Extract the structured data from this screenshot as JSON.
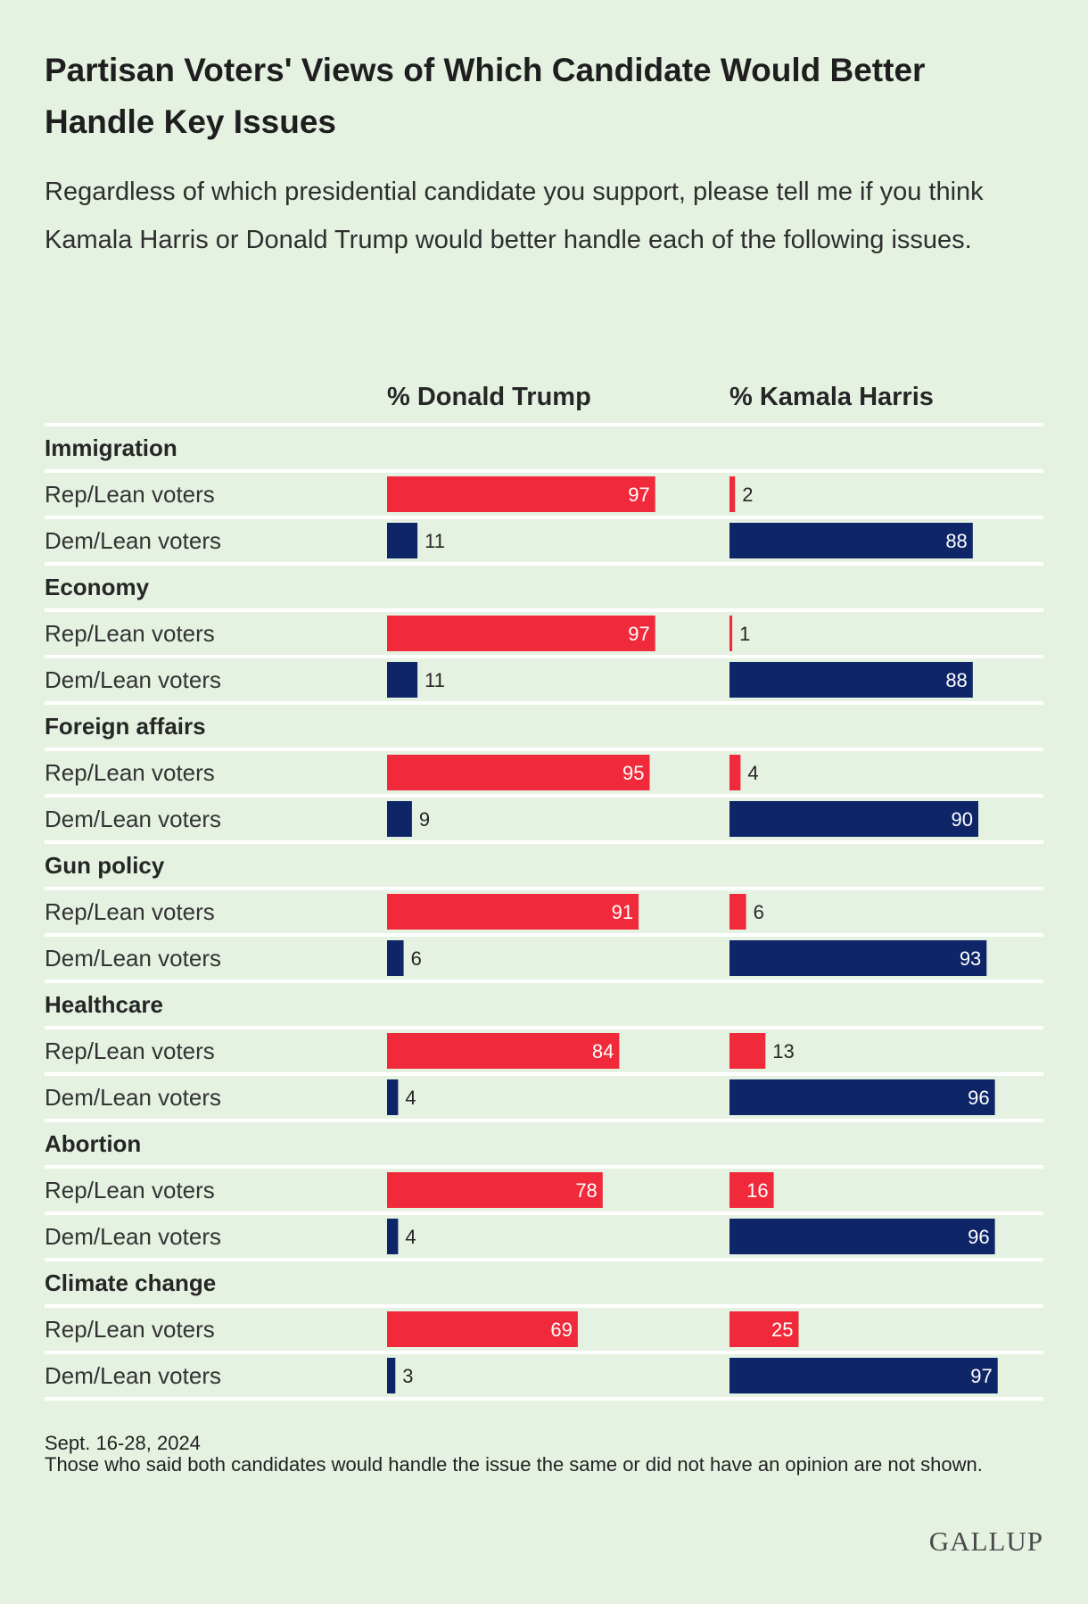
{
  "title": "Partisan Voters' Views of Which Candidate Would Better Handle Key Issues",
  "subtitle": "Regardless of which presidential candidate you support, please tell me if you think Kamala Harris or Donald Trump would better handle each of the following issues.",
  "footer": {
    "date": "Sept. 16-28, 2024",
    "note": "Those who said both candidates would handle the issue the same or did not have an opinion are not shown."
  },
  "logo": "GALLUP",
  "colors": {
    "rep": "#f02a3a",
    "dem": "#0e2568",
    "background": "#e5f2e2",
    "divider": "#ffffff"
  },
  "chart_data": {
    "type": "bar",
    "orientation": "horizontal",
    "columns": [
      "% Donald Trump",
      "% Kamala Harris"
    ],
    "groups": [
      {
        "issue": "Immigration",
        "rows": [
          {
            "label": "Rep/Lean voters",
            "trump": 97,
            "harris": 2
          },
          {
            "label": "Dem/Lean voters",
            "trump": 11,
            "harris": 88
          }
        ]
      },
      {
        "issue": "Economy",
        "rows": [
          {
            "label": "Rep/Lean voters",
            "trump": 97,
            "harris": 1
          },
          {
            "label": "Dem/Lean voters",
            "trump": 11,
            "harris": 88
          }
        ]
      },
      {
        "issue": "Foreign affairs",
        "rows": [
          {
            "label": "Rep/Lean voters",
            "trump": 95,
            "harris": 4
          },
          {
            "label": "Dem/Lean voters",
            "trump": 9,
            "harris": 90
          }
        ]
      },
      {
        "issue": "Gun policy",
        "rows": [
          {
            "label": "Rep/Lean voters",
            "trump": 91,
            "harris": 6
          },
          {
            "label": "Dem/Lean voters",
            "trump": 6,
            "harris": 93
          }
        ]
      },
      {
        "issue": "Healthcare",
        "rows": [
          {
            "label": "Rep/Lean voters",
            "trump": 84,
            "harris": 13
          },
          {
            "label": "Dem/Lean voters",
            "trump": 4,
            "harris": 96
          }
        ]
      },
      {
        "issue": "Abortion",
        "rows": [
          {
            "label": "Rep/Lean voters",
            "trump": 78,
            "harris": 16
          },
          {
            "label": "Dem/Lean voters",
            "trump": 4,
            "harris": 96
          }
        ]
      },
      {
        "issue": "Climate change",
        "rows": [
          {
            "label": "Rep/Lean voters",
            "trump": 69,
            "harris": 25
          },
          {
            "label": "Dem/Lean voters",
            "trump": 3,
            "harris": 97
          }
        ]
      }
    ]
  }
}
